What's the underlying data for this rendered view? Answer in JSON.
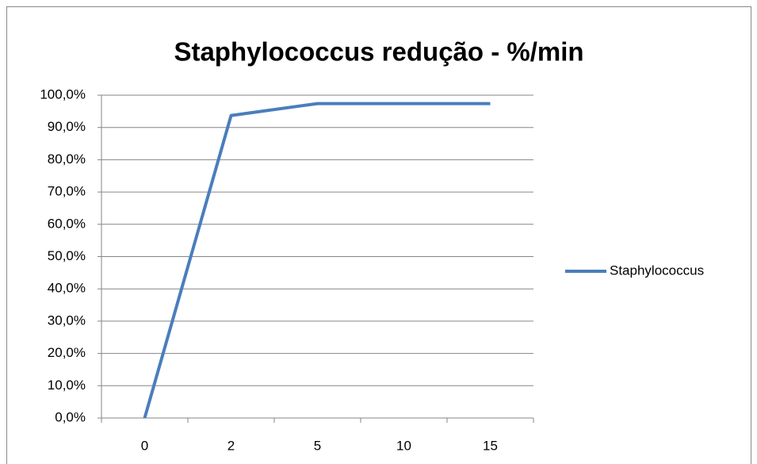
{
  "chart_data": {
    "type": "line",
    "title": "Staphylococcus redução - %/min",
    "categories": [
      "0",
      "2",
      "5",
      "10",
      "15"
    ],
    "series": [
      {
        "name": "Staphylococcus",
        "color": "#4a7ebb",
        "values": [
          0,
          93.7,
          97.4,
          97.4,
          97.4
        ]
      }
    ],
    "ylim": [
      0,
      100
    ],
    "yticks": [
      {
        "value": 0,
        "label": "0,0%"
      },
      {
        "value": 10,
        "label": "10,0%"
      },
      {
        "value": 20,
        "label": "20,0%"
      },
      {
        "value": 30,
        "label": "30,0%"
      },
      {
        "value": 40,
        "label": "40,0%"
      },
      {
        "value": 50,
        "label": "50,0%"
      },
      {
        "value": 60,
        "label": "60,0%"
      },
      {
        "value": 70,
        "label": "70,0%"
      },
      {
        "value": 80,
        "label": "80,0%"
      },
      {
        "value": 90,
        "label": "90,0%"
      },
      {
        "value": 100,
        "label": "100,0%"
      }
    ],
    "grid": true,
    "legend": "right"
  }
}
